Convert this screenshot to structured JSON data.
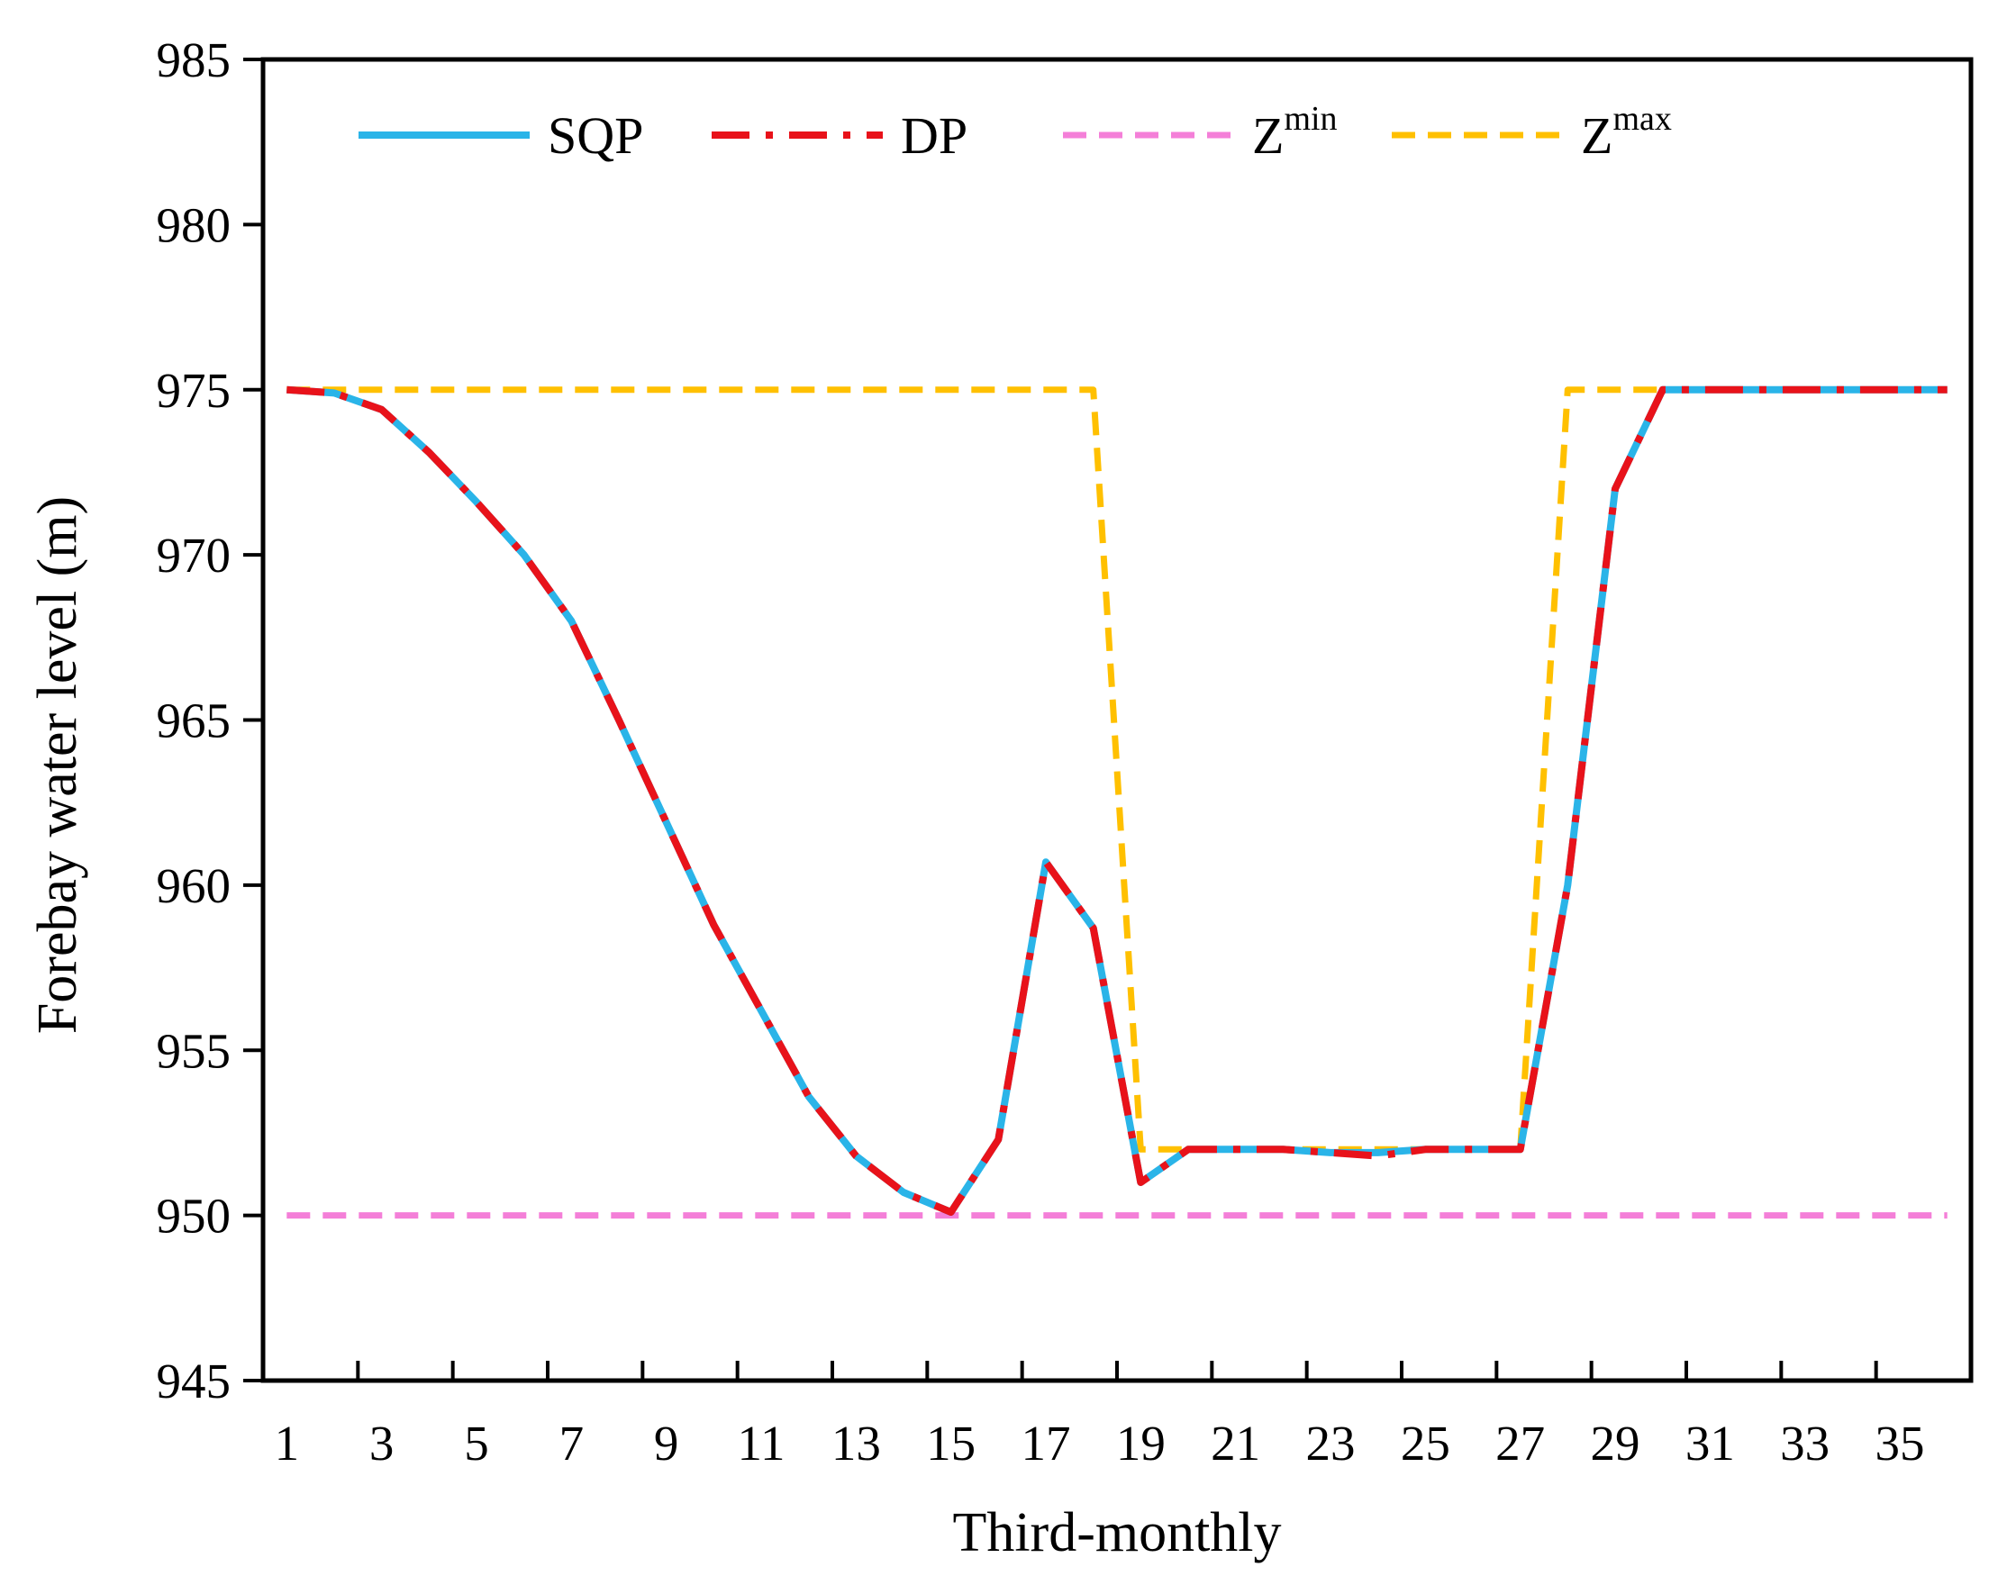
{
  "chart_data": {
    "type": "line",
    "title": "",
    "xlabel": "Third-monthly",
    "ylabel": "Forebay water level (m)",
    "xlim": [
      0.5,
      36.5
    ],
    "ylim": [
      945,
      985
    ],
    "x_ticks": [
      1,
      3,
      5,
      7,
      9,
      11,
      13,
      15,
      17,
      19,
      21,
      23,
      25,
      27,
      29,
      31,
      33,
      35
    ],
    "x_tick_labels": [
      "1",
      "3",
      "5",
      "7",
      "9",
      "11",
      "13",
      "15",
      "17",
      "19",
      "21",
      "23",
      "25",
      "27",
      "29",
      "31",
      "33",
      "35"
    ],
    "y_ticks": [
      945,
      950,
      955,
      960,
      965,
      970,
      975,
      980,
      985
    ],
    "y_tick_labels": [
      "945",
      "950",
      "955",
      "960",
      "965",
      "970",
      "975",
      "980",
      "985"
    ],
    "legend_position": "top",
    "grid": false,
    "series": [
      {
        "name": "SQP",
        "legend_label": "SQP",
        "legend_sup": "",
        "color": "#2ab4e8",
        "style": "solid",
        "x": [
          1,
          2,
          3,
          4,
          5,
          6,
          7,
          8,
          9,
          10,
          11,
          12,
          13,
          14,
          15,
          16,
          17,
          18,
          19,
          20,
          21,
          22,
          23,
          24,
          25,
          26,
          27,
          28,
          29,
          30,
          31,
          32,
          33,
          34,
          35,
          36
        ],
        "values": [
          975.0,
          974.9,
          974.4,
          973.1,
          971.6,
          970.0,
          968.0,
          965.0,
          961.9,
          958.8,
          956.2,
          953.6,
          951.8,
          950.7,
          950.1,
          952.3,
          960.7,
          958.7,
          951.0,
          952.0,
          952.0,
          952.0,
          951.9,
          951.9,
          952.0,
          952.0,
          952.0,
          960.0,
          972.0,
          975.0,
          975.0,
          975.0,
          975.0,
          975.0,
          975.0,
          975.0
        ]
      },
      {
        "name": "DP",
        "legend_label": "DP",
        "legend_sup": "",
        "color": "#e8121a",
        "style": "dashdot",
        "x": [
          1,
          2,
          3,
          4,
          5,
          6,
          7,
          8,
          9,
          10,
          11,
          12,
          13,
          14,
          15,
          16,
          17,
          18,
          19,
          20,
          21,
          22,
          23,
          24,
          25,
          26,
          27,
          28,
          29,
          30,
          31,
          32,
          33,
          34,
          35,
          36
        ],
        "values": [
          975.0,
          974.9,
          974.4,
          973.1,
          971.6,
          970.0,
          968.0,
          965.0,
          961.9,
          958.8,
          956.2,
          953.6,
          951.8,
          950.7,
          950.1,
          952.3,
          960.7,
          958.7,
          951.0,
          952.0,
          952.0,
          952.0,
          951.9,
          951.8,
          952.0,
          952.0,
          952.0,
          960.0,
          972.0,
          975.0,
          975.0,
          975.0,
          975.0,
          975.0,
          975.0,
          975.0
        ]
      },
      {
        "name": "Zmin",
        "legend_label": "Z",
        "legend_sup": "min",
        "color": "#f47fd8",
        "style": "dashed",
        "x": [
          1,
          36
        ],
        "values": [
          950.0,
          950.0
        ]
      },
      {
        "name": "Zmax",
        "legend_label": "Z",
        "legend_sup": "max",
        "color": "#ffc000",
        "style": "dashed",
        "x": [
          1,
          18,
          19,
          27,
          28,
          36
        ],
        "values": [
          975.0,
          975.0,
          952.0,
          952.0,
          975.0,
          975.0
        ]
      }
    ]
  }
}
